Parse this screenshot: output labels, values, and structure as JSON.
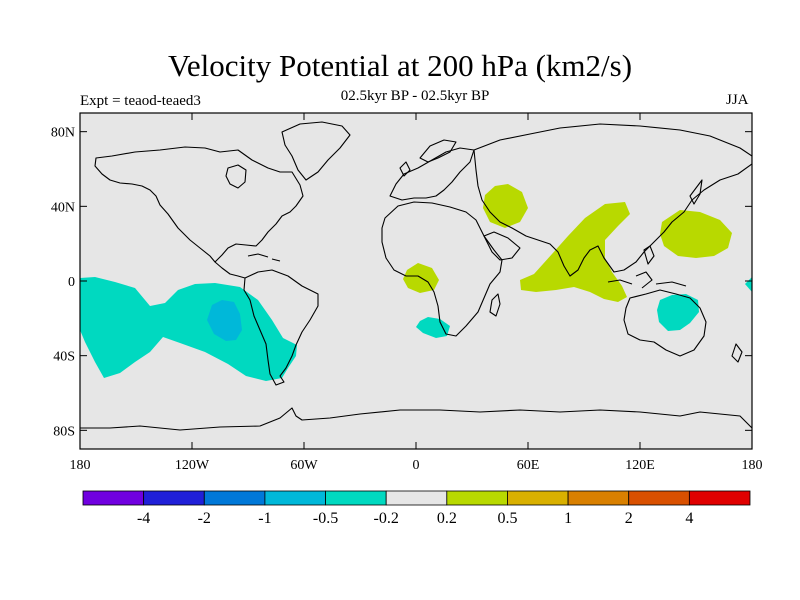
{
  "header": {
    "title": "Velocity Potential at 200 hPa (km2/s)",
    "subtitle": "02.5kyr BP - 02.5kyr BP",
    "experiment": "Expt = teaod-teaed3",
    "season": "JJA"
  },
  "map": {
    "projection": "cylindrical-equidistant",
    "lon_range": [
      -180,
      180
    ],
    "lat_range": [
      -90,
      90
    ],
    "background_color": "#e6e6e6",
    "coastline_color": "#000000",
    "lat_ticks": [
      {
        "value": 80,
        "label": "80N"
      },
      {
        "value": 40,
        "label": "40N"
      },
      {
        "value": 0,
        "label": "0"
      },
      {
        "value": -40,
        "label": "40S"
      },
      {
        "value": -80,
        "label": "80S"
      }
    ],
    "lon_ticks": [
      {
        "value": -180,
        "label": "180"
      },
      {
        "value": -120,
        "label": "120W"
      },
      {
        "value": -60,
        "label": "60W"
      },
      {
        "value": 0,
        "label": "0"
      },
      {
        "value": 60,
        "label": "60E"
      },
      {
        "value": 120,
        "label": "120E"
      },
      {
        "value": 180,
        "label": "180"
      }
    ],
    "anomaly_regions": [
      {
        "name": "east-pacific-negative",
        "level": "-0.5 to -0.2",
        "color": "#00d9c0"
      },
      {
        "name": "southeast-pacific-negative-core",
        "level": "-1 to -0.5",
        "color": "#00b8d9"
      },
      {
        "name": "south-atlantic-negative",
        "level": "-0.5 to -0.2",
        "color": "#00d9c0"
      },
      {
        "name": "australia-negative",
        "level": "-0.5 to -0.2",
        "color": "#00d9c0"
      },
      {
        "name": "east-edge-negative",
        "level": "-0.5 to -0.2",
        "color": "#00d9c0"
      },
      {
        "name": "gulf-of-guinea-positive",
        "level": "0.2 to 0.5",
        "color": "#b8d900"
      },
      {
        "name": "middle-east-positive",
        "level": "0.2 to 0.5",
        "color": "#b8d900"
      },
      {
        "name": "indian-ocean-positive",
        "level": "0.2 to 0.5",
        "color": "#b8d900"
      },
      {
        "name": "west-pacific-positive",
        "level": "0.2 to 0.5",
        "color": "#b8d900"
      }
    ]
  },
  "colorbar": {
    "colors": [
      "#7000e0",
      "#2020d8",
      "#0078d8",
      "#00b8d9",
      "#00d9c0",
      "#e6e6e6",
      "#b8d900",
      "#d9b000",
      "#d98000",
      "#d95000",
      "#e00000"
    ],
    "labels": [
      "-4",
      "-2",
      "-1",
      "-0.5",
      "-0.2",
      "0.2",
      "0.5",
      "1",
      "2",
      "4"
    ]
  }
}
